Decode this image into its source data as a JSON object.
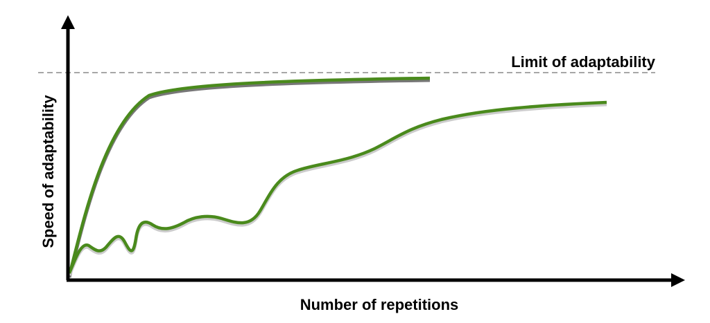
{
  "axes": {
    "y_label": "Speed of adaptability",
    "x_label": "Number of repetitions"
  },
  "annotations": {
    "limit": "Limit of adaptability"
  }
}
